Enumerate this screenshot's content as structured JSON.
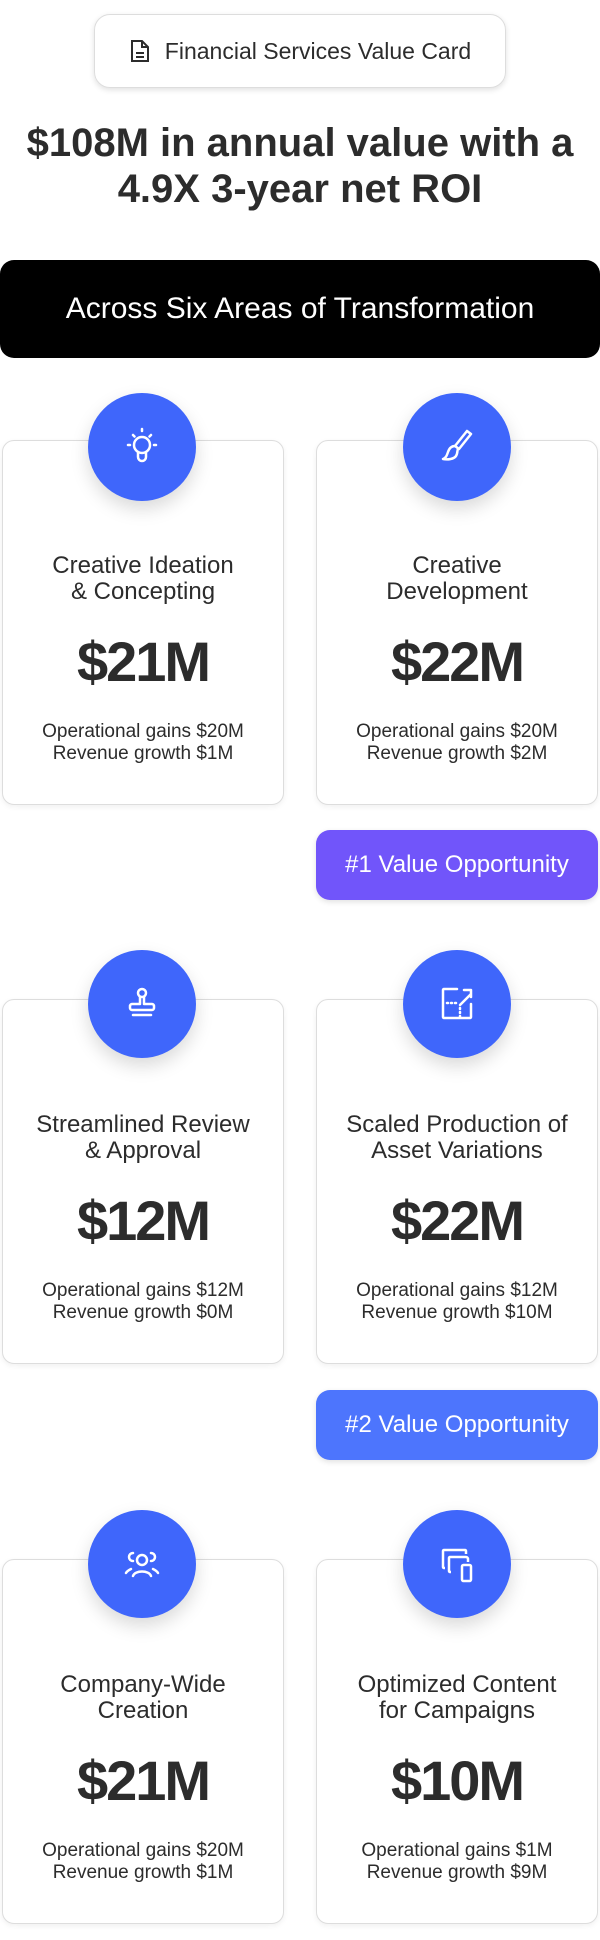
{
  "header": {
    "pill_label": "Financial Services Value Card",
    "pill_icon": "document-icon"
  },
  "headline": {
    "strong": "$108M",
    "rest_line1": " in annual value with a",
    "line2": "4.9X 3-year net ROI"
  },
  "banner": {
    "label": "Across Six Areas of Transformation"
  },
  "colors": {
    "accent": "#3f66fb",
    "badge1": "#7155fa",
    "badge2": "#4d75fd",
    "banner": "#000000"
  },
  "cards": [
    {
      "icon": "lightbulb-icon",
      "title1": "Creative Ideation",
      "title2": "& Concepting",
      "value": "$21M",
      "detail1": "Operational gains $20M",
      "detail2": "Revenue growth $1M"
    },
    {
      "icon": "paintbrush-icon",
      "title1": "Creative",
      "title2": "Development",
      "value": "$22M",
      "detail1": "Operational gains $20M",
      "detail2": "Revenue growth $2M"
    },
    {
      "icon": "stamp-icon",
      "title1": "Streamlined Review",
      "title2": "& Approval",
      "value": "$12M",
      "detail1": "Operational gains $12M",
      "detail2": "Revenue growth $0M"
    },
    {
      "icon": "resize-icon",
      "title1": "Scaled Production of",
      "title2": "Asset Variations",
      "value": "$22M",
      "detail1": "Operational gains $12M",
      "detail2": "Revenue growth $10M"
    },
    {
      "icon": "users-icon",
      "title1": "Company-Wide",
      "title2": "Creation",
      "value": "$21M",
      "detail1": "Operational gains $20M",
      "detail2": "Revenue growth $1M"
    },
    {
      "icon": "devices-icon",
      "title1": "Optimized Content",
      "title2": "for Campaigns",
      "value": "$10M",
      "detail1": "Operational gains $1M",
      "detail2": "Revenue growth $9M"
    }
  ],
  "badges": [
    {
      "label": "#1 Value Opportunity"
    },
    {
      "label": "#2 Value Opportunity"
    }
  ]
}
